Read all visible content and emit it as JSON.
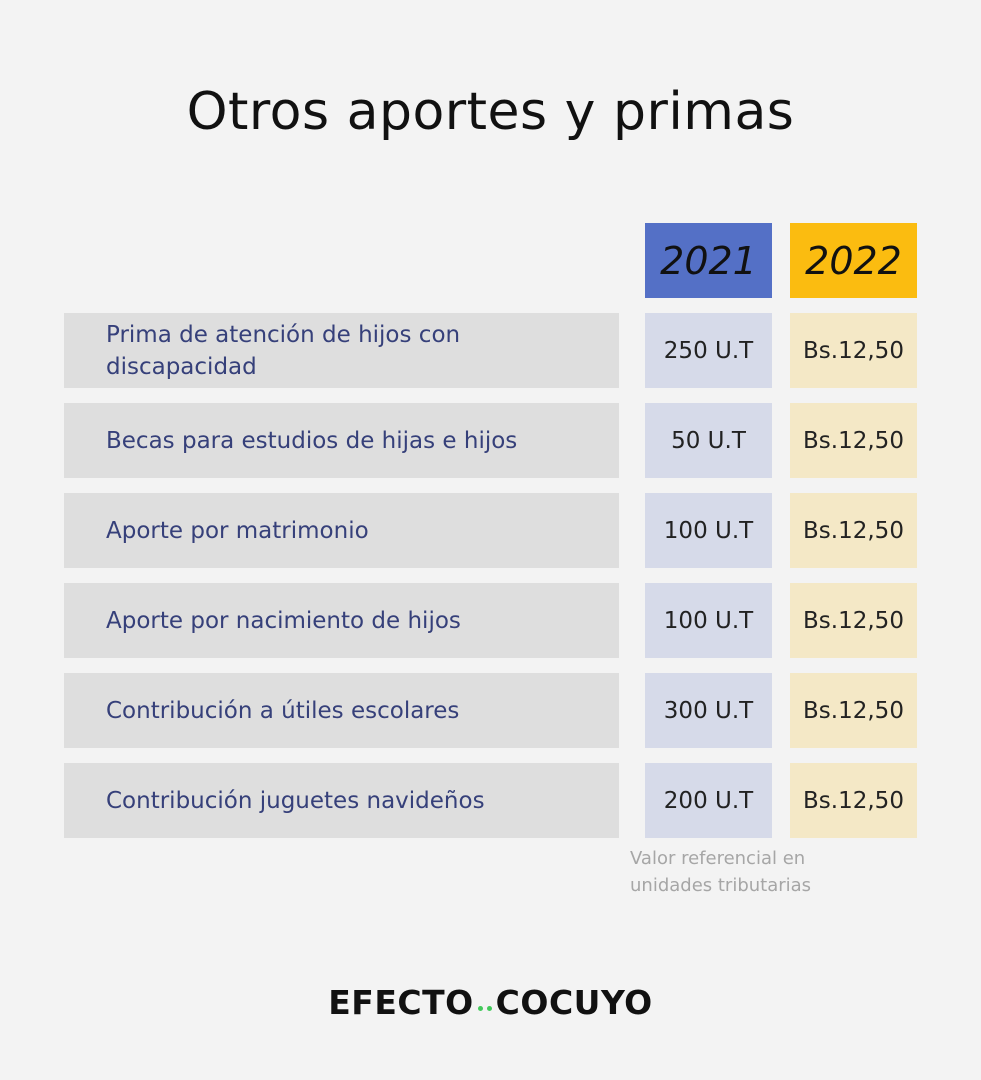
{
  "title": "Otros aportes y primas",
  "columns": {
    "year_2021": "2021",
    "year_2022": "2022"
  },
  "colors": {
    "header_2021": "#5470c6",
    "header_2022": "#fbbc10",
    "dot": "#42c95a"
  },
  "rows": [
    {
      "label": "Prima de atención de hijos con discapacidad",
      "v2021": "250 U.T",
      "v2022": "Bs.12,50"
    },
    {
      "label": "Becas para estudios de hijas e hijos",
      "v2021": "50 U.T",
      "v2022": "Bs.12,50"
    },
    {
      "label": "Aporte por matrimonio",
      "v2021": "100 U.T",
      "v2022": "Bs.12,50"
    },
    {
      "label": "Aporte por nacimiento de hijos",
      "v2021": "100 U.T",
      "v2022": "Bs.12,50"
    },
    {
      "label": "Contribución a útiles escolares",
      "v2021": "300 U.T",
      "v2022": "Bs.12,50"
    },
    {
      "label": "Contribución juguetes navideños",
      "v2021": "200 U.T",
      "v2022": "Bs.12,50"
    }
  ],
  "note": "Valor referencial en unidades tributarias",
  "logo": {
    "part1": "EFECTO",
    "part2": "COCUYO"
  }
}
